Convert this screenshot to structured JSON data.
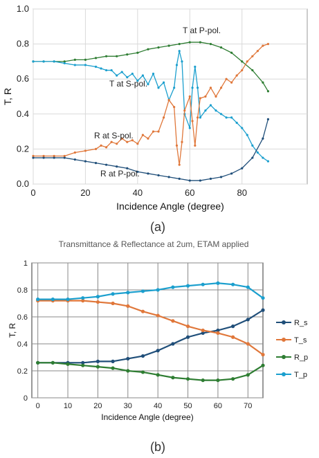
{
  "chart_data": [
    {
      "type": "line",
      "panel_label": "(a)",
      "title": "",
      "xlabel": "Incidence Angle (degree)",
      "ylabel": "T, R",
      "xlim": [
        0,
        105
      ],
      "ylim": [
        0,
        1.0
      ],
      "x_ticks": [
        "0",
        "20",
        "40",
        "60",
        "80"
      ],
      "y_ticks": [
        "0.0",
        "0.2",
        "0.4",
        "0.6",
        "0.8",
        "1.0"
      ],
      "grid": true,
      "annotations": [
        {
          "text": "T at P-pol.",
          "series": "T_p"
        },
        {
          "text": "T at S-pol.",
          "series": "T_s"
        },
        {
          "text": "R at S-pol.",
          "series": "R_s"
        },
        {
          "text": "R at P-pol.",
          "series": "R_p"
        }
      ],
      "series": [
        {
          "key": "T_p",
          "color": "#2e7d32",
          "x": [
            0,
            4,
            8,
            12,
            16,
            20,
            24,
            28,
            32,
            36,
            40,
            44,
            48,
            52,
            56,
            60,
            64,
            68,
            72,
            76,
            80,
            84,
            88,
            90
          ],
          "values": [
            0.7,
            0.7,
            0.7,
            0.7,
            0.71,
            0.71,
            0.72,
            0.73,
            0.73,
            0.74,
            0.75,
            0.77,
            0.78,
            0.79,
            0.8,
            0.81,
            0.81,
            0.8,
            0.78,
            0.75,
            0.7,
            0.65,
            0.58,
            0.53
          ]
        },
        {
          "key": "T_s",
          "color": "#1b9fce",
          "x": [
            0,
            4,
            8,
            12,
            16,
            20,
            24,
            26,
            28,
            30,
            32,
            34,
            36,
            38,
            40,
            42,
            44,
            46,
            48,
            50,
            52,
            54,
            55,
            56,
            57,
            58,
            60,
            61,
            62,
            63,
            64,
            66,
            68,
            70,
            72,
            74,
            76,
            78,
            80,
            82,
            84,
            86,
            88,
            90
          ],
          "values": [
            0.7,
            0.7,
            0.7,
            0.69,
            0.68,
            0.68,
            0.67,
            0.66,
            0.65,
            0.65,
            0.62,
            0.64,
            0.61,
            0.63,
            0.59,
            0.62,
            0.57,
            0.63,
            0.55,
            0.58,
            0.48,
            0.55,
            0.68,
            0.76,
            0.7,
            0.4,
            0.32,
            0.55,
            0.67,
            0.55,
            0.38,
            0.42,
            0.45,
            0.42,
            0.4,
            0.38,
            0.38,
            0.35,
            0.32,
            0.28,
            0.22,
            0.18,
            0.15,
            0.13
          ]
        },
        {
          "key": "R_s",
          "color": "#e0773a",
          "x": [
            0,
            4,
            8,
            12,
            16,
            20,
            24,
            26,
            28,
            30,
            32,
            34,
            36,
            38,
            40,
            42,
            44,
            46,
            48,
            50,
            52,
            54,
            55,
            56,
            57,
            58,
            60,
            61,
            62,
            63,
            64,
            66,
            68,
            70,
            72,
            74,
            76,
            78,
            80,
            82,
            84,
            86,
            88,
            90
          ],
          "values": [
            0.16,
            0.16,
            0.16,
            0.16,
            0.18,
            0.19,
            0.2,
            0.22,
            0.21,
            0.24,
            0.23,
            0.26,
            0.24,
            0.25,
            0.23,
            0.28,
            0.26,
            0.3,
            0.3,
            0.38,
            0.48,
            0.44,
            0.22,
            0.11,
            0.24,
            0.42,
            0.5,
            0.36,
            0.22,
            0.38,
            0.49,
            0.5,
            0.55,
            0.5,
            0.55,
            0.6,
            0.58,
            0.62,
            0.65,
            0.7,
            0.73,
            0.76,
            0.79,
            0.8
          ]
        },
        {
          "key": "R_p",
          "color": "#1f4e79",
          "x": [
            0,
            4,
            8,
            12,
            16,
            20,
            24,
            28,
            32,
            36,
            40,
            44,
            48,
            52,
            56,
            60,
            64,
            68,
            72,
            76,
            80,
            84,
            88,
            90
          ],
          "values": [
            0.15,
            0.15,
            0.15,
            0.15,
            0.14,
            0.13,
            0.12,
            0.11,
            0.1,
            0.09,
            0.07,
            0.06,
            0.05,
            0.04,
            0.03,
            0.02,
            0.02,
            0.03,
            0.04,
            0.06,
            0.09,
            0.15,
            0.26,
            0.37
          ]
        }
      ]
    },
    {
      "type": "line",
      "panel_label": "(b)",
      "title": "Transmittance & Reflectance at 2um, ETAM applied",
      "xlabel": "Incidence Angle (degree)",
      "ylabel": "T, R",
      "xlim": [
        -2,
        75
      ],
      "ylim": [
        0,
        1
      ],
      "x_ticks": [
        "0",
        "10",
        "20",
        "30",
        "40",
        "50",
        "60",
        "70"
      ],
      "y_ticks": [
        "0",
        "0.2",
        "0.4",
        "0.6",
        "0.8",
        "1"
      ],
      "grid": true,
      "legend": "right",
      "series": [
        {
          "name": "R_s",
          "color": "#1f4e79",
          "x": [
            0,
            5,
            10,
            15,
            20,
            25,
            30,
            35,
            40,
            45,
            50,
            55,
            60,
            65,
            70,
            75
          ],
          "values": [
            0.26,
            0.26,
            0.26,
            0.26,
            0.27,
            0.27,
            0.29,
            0.31,
            0.35,
            0.4,
            0.45,
            0.48,
            0.5,
            0.53,
            0.58,
            0.65
          ]
        },
        {
          "name": "T_s",
          "color": "#e0773a",
          "x": [
            0,
            5,
            10,
            15,
            20,
            25,
            30,
            35,
            40,
            45,
            50,
            55,
            60,
            65,
            70,
            75
          ],
          "values": [
            0.72,
            0.72,
            0.72,
            0.72,
            0.71,
            0.7,
            0.68,
            0.64,
            0.61,
            0.57,
            0.53,
            0.5,
            0.48,
            0.45,
            0.4,
            0.32
          ]
        },
        {
          "name": "R_p",
          "color": "#2e7d32",
          "x": [
            0,
            5,
            10,
            15,
            20,
            25,
            30,
            35,
            40,
            45,
            50,
            55,
            60,
            65,
            70,
            75
          ],
          "values": [
            0.26,
            0.26,
            0.25,
            0.24,
            0.23,
            0.22,
            0.2,
            0.19,
            0.17,
            0.15,
            0.14,
            0.13,
            0.13,
            0.14,
            0.17,
            0.24
          ]
        },
        {
          "name": "T_p",
          "color": "#1b9fce",
          "x": [
            0,
            5,
            10,
            15,
            20,
            25,
            30,
            35,
            40,
            45,
            50,
            55,
            60,
            65,
            70,
            75
          ],
          "values": [
            0.73,
            0.73,
            0.73,
            0.74,
            0.75,
            0.77,
            0.78,
            0.79,
            0.8,
            0.82,
            0.83,
            0.84,
            0.85,
            0.84,
            0.82,
            0.74
          ]
        }
      ]
    }
  ]
}
